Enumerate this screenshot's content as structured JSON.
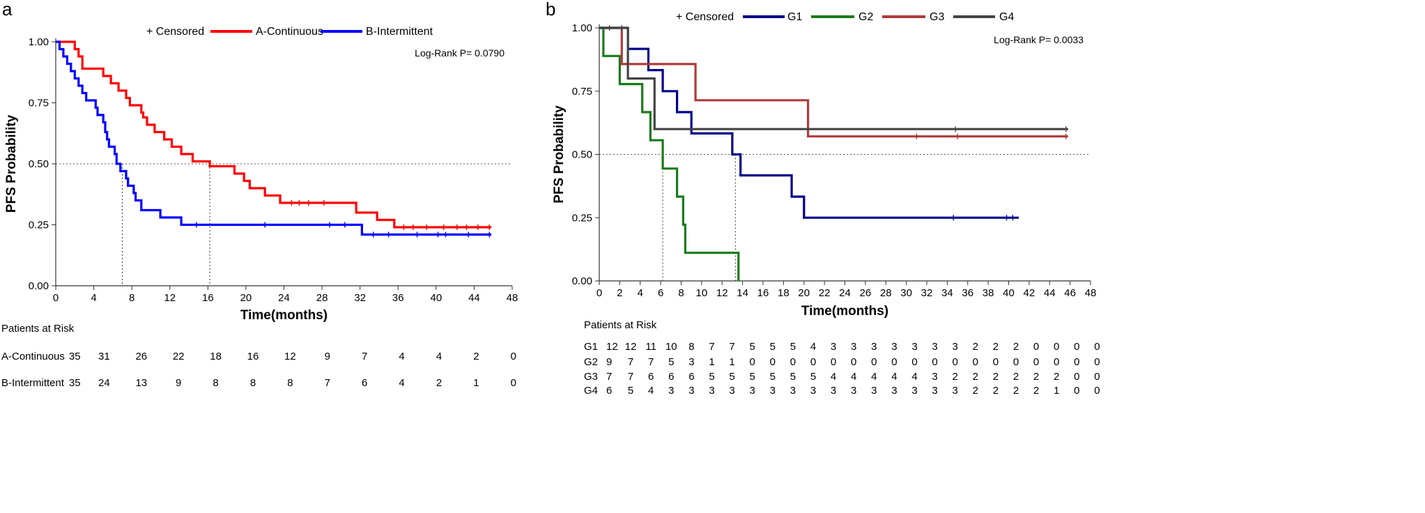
{
  "chart_data": [
    {
      "panel_label": "a",
      "type": "line",
      "subtype": "kaplan-meier",
      "title": "",
      "xlabel": "Time(months)",
      "ylabel": "PFS Probability",
      "xlim": [
        0,
        48
      ],
      "ylim": [
        0,
        1
      ],
      "xticks": [
        "0",
        "4",
        "8",
        "12",
        "16",
        "20",
        "24",
        "28",
        "32",
        "36",
        "40",
        "44",
        "48"
      ],
      "yticks": [
        "0.00",
        "0.25",
        "0.50",
        "0.75",
        "1.00"
      ],
      "reference_line_y": 0.5,
      "median_lines_x": [
        7,
        16.2
      ],
      "legend": {
        "censored": "+ Censored",
        "position": "top"
      },
      "annotation": "Log-Rank  P= 0.0790",
      "series": [
        {
          "name": "A-Continuous",
          "color": "#ff0000",
          "steps": [
            [
              0,
              1.0
            ],
            [
              2,
              0.97
            ],
            [
              2.4,
              0.94
            ],
            [
              2.8,
              0.89
            ],
            [
              5,
              0.86
            ],
            [
              5.8,
              0.83
            ],
            [
              6.6,
              0.8
            ],
            [
              7.4,
              0.77
            ],
            [
              7.8,
              0.74
            ],
            [
              9,
              0.71
            ],
            [
              9.2,
              0.69
            ],
            [
              9.6,
              0.66
            ],
            [
              10.4,
              0.63
            ],
            [
              11.4,
              0.6
            ],
            [
              12.2,
              0.57
            ],
            [
              13.2,
              0.54
            ],
            [
              14.4,
              0.51
            ],
            [
              16.2,
              0.49
            ],
            [
              18.8,
              0.46
            ],
            [
              19.8,
              0.43
            ],
            [
              20.4,
              0.4
            ],
            [
              22,
              0.37
            ],
            [
              23.6,
              0.34
            ],
            [
              30,
              0.34
            ],
            [
              31.6,
              0.3
            ],
            [
              33.8,
              0.27
            ],
            [
              35.6,
              0.24
            ],
            [
              45.8,
              0.24
            ]
          ],
          "censored": [
            [
              24.8,
              0.34
            ],
            [
              25.6,
              0.34
            ],
            [
              26.6,
              0.34
            ],
            [
              28.2,
              0.34
            ],
            [
              36.6,
              0.24
            ],
            [
              37.6,
              0.24
            ],
            [
              39,
              0.24
            ],
            [
              40.8,
              0.24
            ],
            [
              42.2,
              0.24
            ],
            [
              43.2,
              0.24
            ],
            [
              44.4,
              0.24
            ],
            [
              45.6,
              0.24
            ]
          ]
        },
        {
          "name": "B-Intermittent",
          "color": "#0000ff",
          "steps": [
            [
              0,
              1.0
            ],
            [
              0.4,
              0.97
            ],
            [
              0.8,
              0.94
            ],
            [
              1.2,
              0.91
            ],
            [
              1.6,
              0.88
            ],
            [
              2,
              0.85
            ],
            [
              2.4,
              0.82
            ],
            [
              2.8,
              0.79
            ],
            [
              3.2,
              0.76
            ],
            [
              4.2,
              0.73
            ],
            [
              4.4,
              0.7
            ],
            [
              5,
              0.67
            ],
            [
              5.2,
              0.63
            ],
            [
              5.4,
              0.6
            ],
            [
              5.6,
              0.57
            ],
            [
              6.2,
              0.54
            ],
            [
              6.4,
              0.5
            ],
            [
              6.8,
              0.47
            ],
            [
              7.4,
              0.44
            ],
            [
              7.6,
              0.41
            ],
            [
              8.2,
              0.38
            ],
            [
              8.4,
              0.35
            ],
            [
              9,
              0.31
            ],
            [
              10.6,
              0.31
            ],
            [
              11,
              0.28
            ],
            [
              13.2,
              0.25
            ],
            [
              32.2,
              0.21
            ],
            [
              45.8,
              0.21
            ]
          ],
          "censored": [
            [
              14.8,
              0.25
            ],
            [
              22,
              0.25
            ],
            [
              28.8,
              0.25
            ],
            [
              30.4,
              0.25
            ],
            [
              33.4,
              0.21
            ],
            [
              35,
              0.21
            ],
            [
              38,
              0.21
            ],
            [
              40.2,
              0.21
            ],
            [
              41,
              0.21
            ],
            [
              43.4,
              0.21
            ],
            [
              45.6,
              0.21
            ]
          ]
        }
      ],
      "risk_table": {
        "header": "Patients at Risk",
        "rows": [
          {
            "label": "A-Continuous",
            "values": [
              "35",
              "31",
              "26",
              "22",
              "18",
              "16",
              "12",
              "9",
              "7",
              "4",
              "4",
              "2",
              "0"
            ]
          },
          {
            "label": "B-Intermittent",
            "values": [
              "35",
              "24",
              "13",
              "9",
              "8",
              "8",
              "8",
              "7",
              "6",
              "4",
              "2",
              "1",
              "0"
            ]
          }
        ]
      }
    },
    {
      "panel_label": "b",
      "type": "line",
      "subtype": "kaplan-meier",
      "title": "",
      "xlabel": "Time(months)",
      "ylabel": "PFS Probability",
      "xlim": [
        0,
        48
      ],
      "ylim": [
        0,
        1
      ],
      "xticks": [
        "0",
        "2",
        "4",
        "6",
        "8",
        "10",
        "12",
        "14",
        "16",
        "18",
        "20",
        "22",
        "24",
        "26",
        "28",
        "30",
        "32",
        "34",
        "36",
        "38",
        "40",
        "42",
        "44",
        "46",
        "48"
      ],
      "yticks": [
        "0.00",
        "0.25",
        "0.50",
        "0.75",
        "1.00"
      ],
      "reference_line_y": 0.5,
      "median_lines_x": [
        6.2,
        13.3
      ],
      "legend": {
        "censored": "+ Censored",
        "position": "top"
      },
      "annotation": "Log-Rank  P= 0.0033",
      "series": [
        {
          "name": "G1",
          "color": "#00008b",
          "steps": [
            [
              0,
              1.0
            ],
            [
              2.8,
              0.917
            ],
            [
              4.8,
              0.833
            ],
            [
              6.2,
              0.75
            ],
            [
              7.6,
              0.667
            ],
            [
              9,
              0.583
            ],
            [
              13,
              0.5
            ],
            [
              13.8,
              0.417
            ],
            [
              18.8,
              0.333
            ],
            [
              20,
              0.25
            ],
            [
              41,
              0.25
            ]
          ],
          "censored": [
            [
              34.6,
              0.25
            ],
            [
              39.8,
              0.25
            ],
            [
              40.4,
              0.25
            ]
          ]
        },
        {
          "name": "G2",
          "color": "#1a7a1a",
          "steps": [
            [
              0,
              1.0
            ],
            [
              0.4,
              0.889
            ],
            [
              2,
              0.778
            ],
            [
              4.2,
              0.667
            ],
            [
              5,
              0.556
            ],
            [
              6.2,
              0.444
            ],
            [
              7.6,
              0.333
            ],
            [
              8.2,
              0.222
            ],
            [
              8.4,
              0.111
            ],
            [
              13.6,
              0.0
            ]
          ],
          "censored": []
        },
        {
          "name": "G3",
          "color": "#b03a3a",
          "steps": [
            [
              0,
              1.0
            ],
            [
              2.2,
              0.857
            ],
            [
              9.4,
              0.714
            ],
            [
              20.4,
              0.571
            ],
            [
              45.8,
              0.571
            ]
          ],
          "censored": [
            [
              31,
              0.571
            ],
            [
              35,
              0.571
            ],
            [
              45.6,
              0.571
            ]
          ]
        },
        {
          "name": "G4",
          "color": "#444444",
          "steps": [
            [
              0,
              1.0
            ],
            [
              2.8,
              0.8
            ],
            [
              5.4,
              0.6
            ],
            [
              45.8,
              0.6
            ]
          ],
          "censored": [
            [
              1,
              1.0
            ],
            [
              2.2,
              1.0
            ],
            [
              34.8,
              0.6
            ],
            [
              45.6,
              0.6
            ]
          ]
        }
      ],
      "risk_table": {
        "header": "Patients at Risk",
        "rows": [
          {
            "label": "G1",
            "values": [
              "12",
              "12",
              "11",
              "10",
              "8",
              "7",
              "7",
              "5",
              "5",
              "5",
              "4",
              "3",
              "3",
              "3",
              "3",
              "3",
              "3",
              "3",
              "2",
              "2",
              "2",
              "0",
              "0",
              "0",
              "0"
            ]
          },
          {
            "label": "G2",
            "values": [
              "9",
              "7",
              "7",
              "5",
              "3",
              "1",
              "1",
              "0",
              "0",
              "0",
              "0",
              "0",
              "0",
              "0",
              "0",
              "0",
              "0",
              "0",
              "0",
              "0",
              "0",
              "0",
              "0",
              "0",
              "0"
            ]
          },
          {
            "label": "G3",
            "values": [
              "7",
              "7",
              "6",
              "6",
              "6",
              "5",
              "5",
              "5",
              "5",
              "5",
              "5",
              "4",
              "4",
              "4",
              "4",
              "4",
              "3",
              "2",
              "2",
              "2",
              "2",
              "2",
              "2",
              "0",
              "0"
            ]
          },
          {
            "label": "G4",
            "values": [
              "6",
              "5",
              "4",
              "3",
              "3",
              "3",
              "3",
              "3",
              "3",
              "3",
              "3",
              "3",
              "3",
              "3",
              "3",
              "3",
              "3",
              "3",
              "2",
              "2",
              "2",
              "2",
              "1",
              "0",
              "0"
            ]
          }
        ]
      }
    }
  ]
}
